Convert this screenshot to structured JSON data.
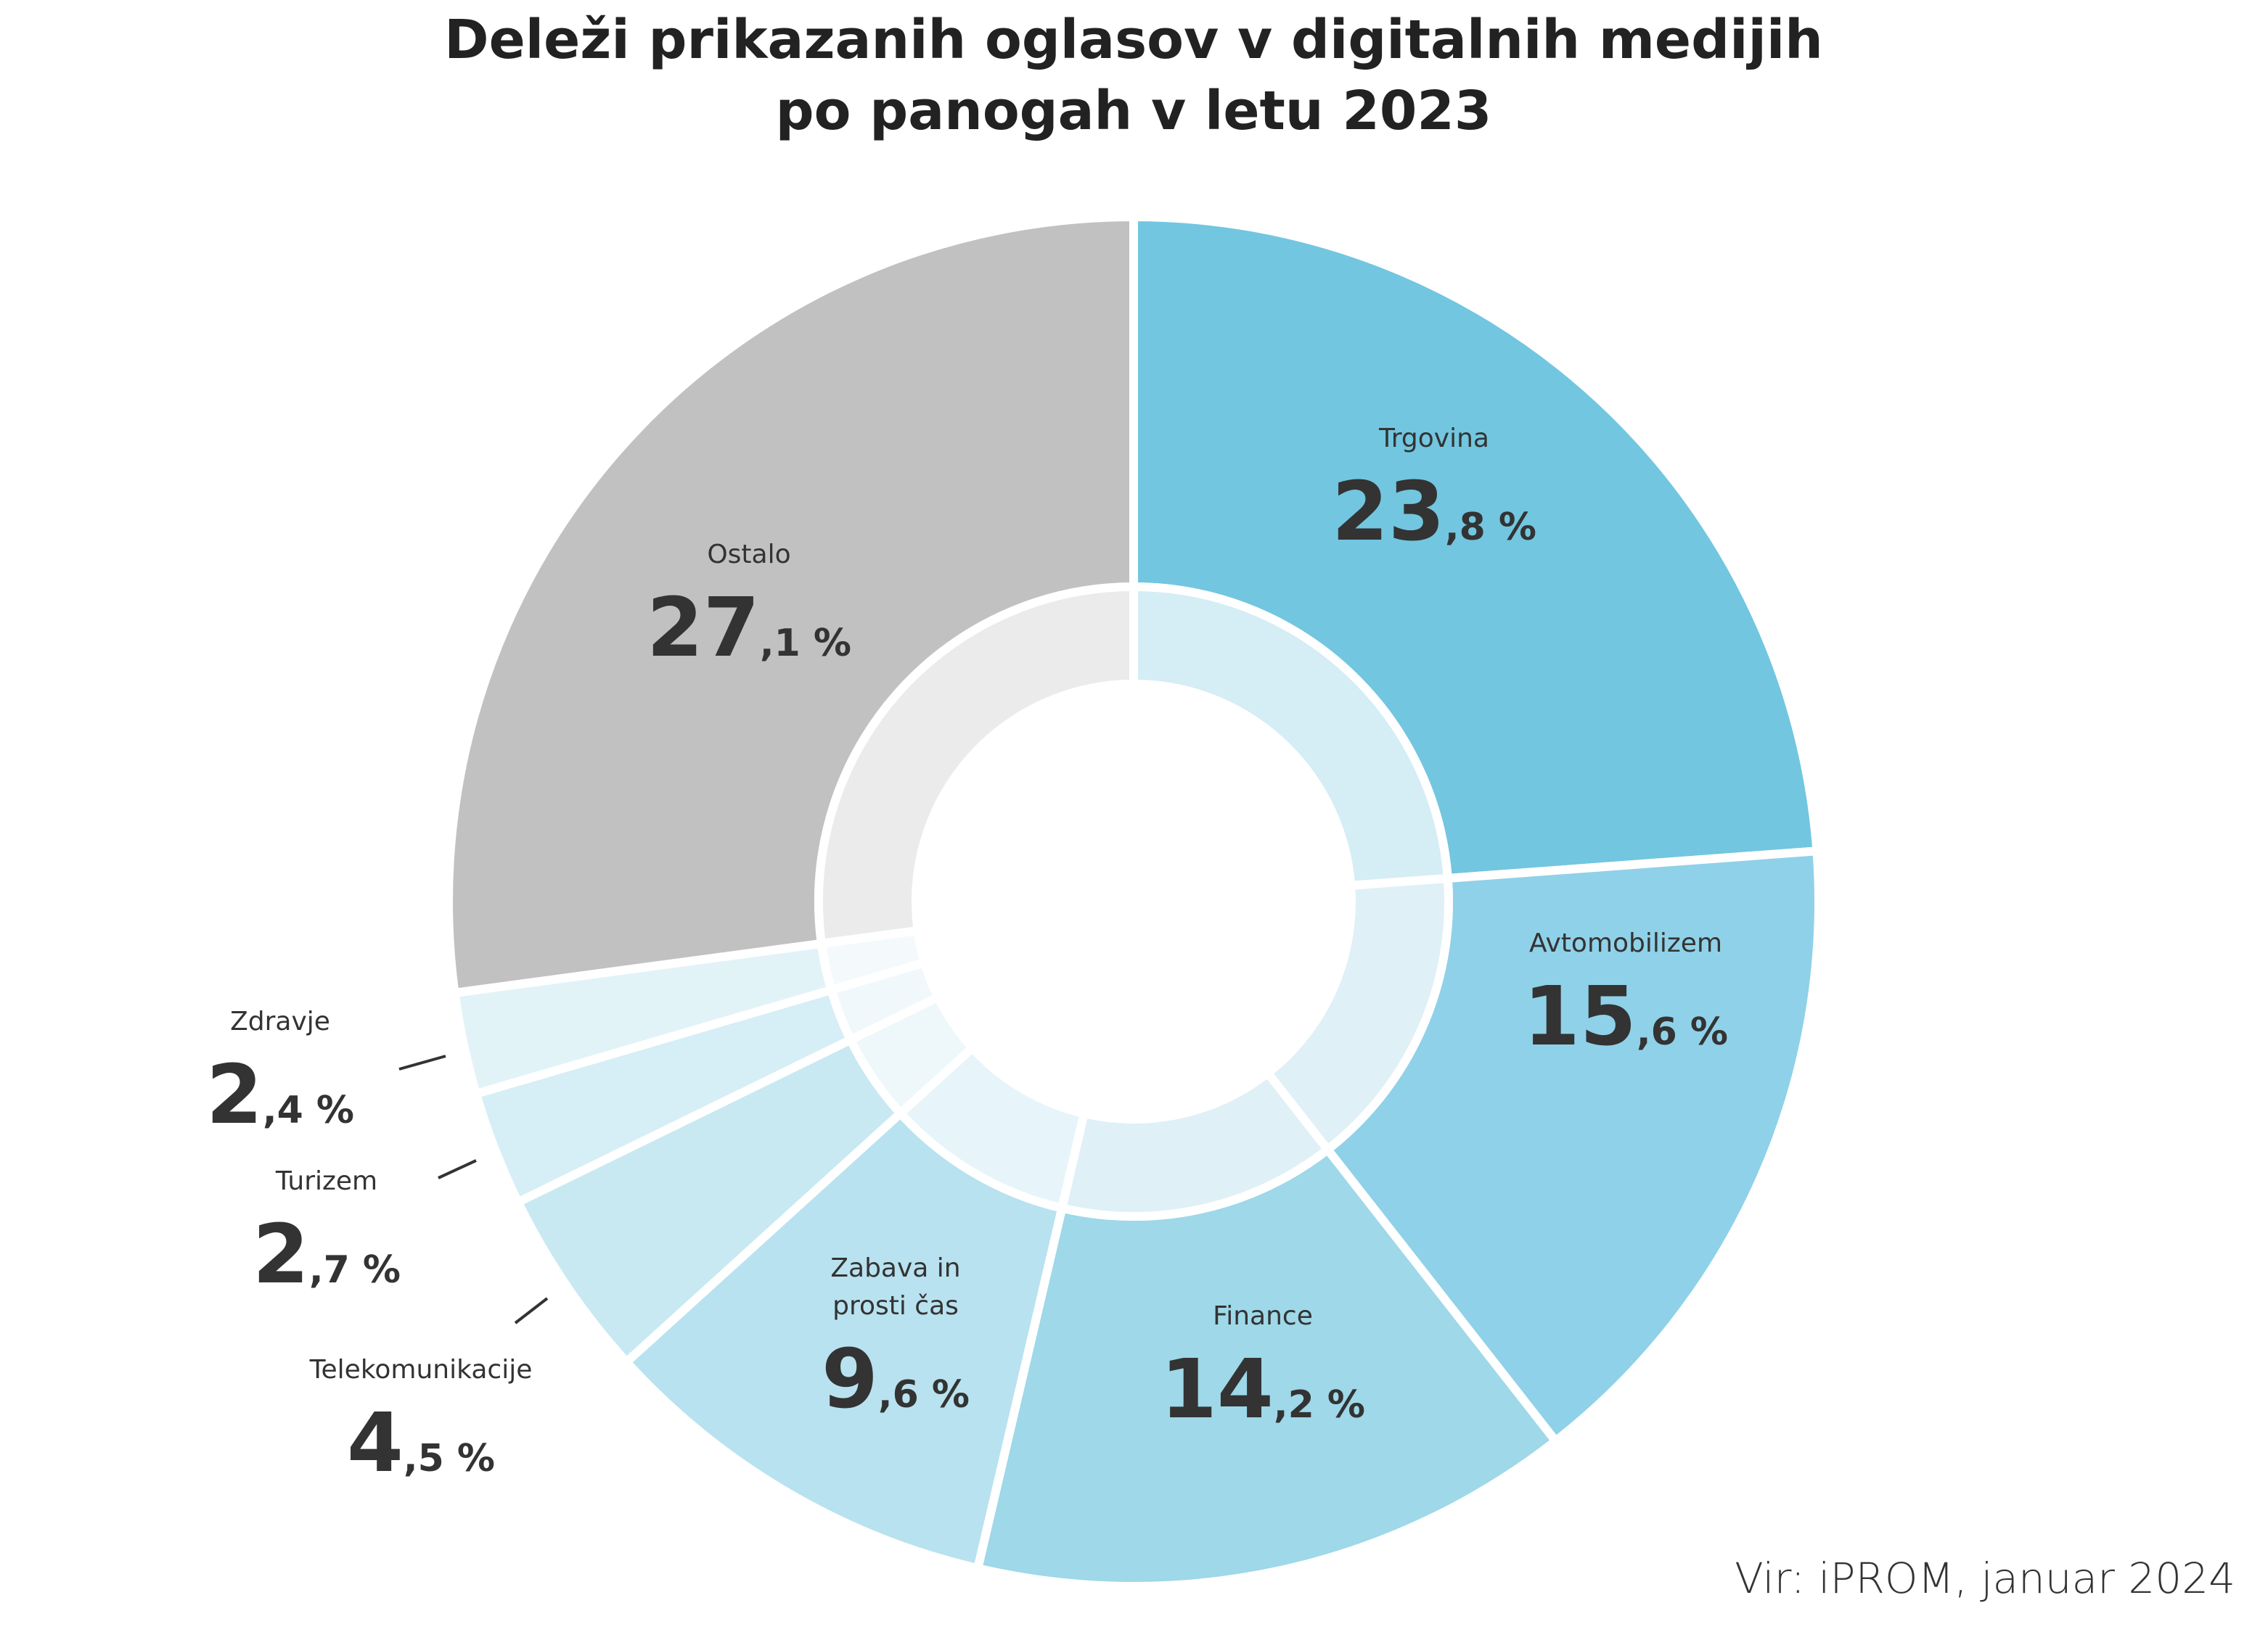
{
  "chart_data": {
    "type": "pie",
    "variant": "donut",
    "title": [
      "Deleži prikazanih oglasov v digitalnih medijih",
      "po panogah v letu 2023"
    ],
    "unit": "%",
    "source": "Vir: iPROM, januar 2024",
    "slices": [
      {
        "label": [
          "Trgovina"
        ],
        "value": 23.8,
        "color": "#72c6e0",
        "inner_color": "#d5edf5"
      },
      {
        "label": [
          "Avtomobilizem"
        ],
        "value": 15.6,
        "color": "#8fd1e8",
        "inner_color": "#dff0f6"
      },
      {
        "label": [
          "Finance"
        ],
        "value": 14.2,
        "color": "#9ed8e9",
        "inner_color": "#dff0f6"
      },
      {
        "label": [
          "Zabava in",
          "prosti čas"
        ],
        "value": 9.6,
        "color": "#b8e2ef",
        "inner_color": "#e7f5fa"
      },
      {
        "label": [
          "Telekomunikacije"
        ],
        "value": 4.5,
        "color": "#c8e9f2",
        "inner_color": "#eef7fa"
      },
      {
        "label": [
          "Turizem"
        ],
        "value": 2.7,
        "color": "#d6eef5",
        "inner_color": "#f0f8fb"
      },
      {
        "label": [
          "Zdravje"
        ],
        "value": 2.4,
        "color": "#e2f3f8",
        "inner_color": "#f4fafc"
      },
      {
        "label": [
          "Ostalo"
        ],
        "value": 27.1,
        "color": "#c1c1c1",
        "inner_color": "#ebebeb"
      }
    ]
  }
}
